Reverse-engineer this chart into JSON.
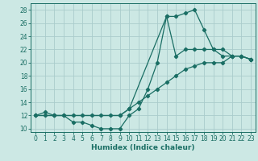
{
  "xlabel": "Humidex (Indice chaleur)",
  "background_color": "#cce8e4",
  "grid_color": "#aacccc",
  "line_color": "#1a6e64",
  "xlim": [
    -0.5,
    23.5
  ],
  "ylim": [
    9.5,
    29
  ],
  "yticks": [
    10,
    12,
    14,
    16,
    18,
    20,
    22,
    24,
    26,
    28
  ],
  "xticks": [
    0,
    1,
    2,
    3,
    4,
    5,
    6,
    7,
    8,
    9,
    10,
    11,
    12,
    13,
    14,
    15,
    16,
    17,
    18,
    19,
    20,
    21,
    22,
    23
  ],
  "series1_x": [
    0,
    1,
    2,
    3,
    4,
    5,
    6,
    7,
    8,
    9,
    10,
    11,
    12,
    13,
    14,
    15,
    16,
    17,
    18,
    19,
    20,
    21,
    22,
    23
  ],
  "series1_y": [
    12,
    12,
    12,
    12,
    12,
    12,
    12,
    12,
    12,
    12,
    13,
    14,
    15,
    16,
    17,
    18,
    19,
    19.5,
    20,
    20,
    20,
    21,
    21,
    20.5
  ],
  "series2_x": [
    0,
    1,
    2,
    3,
    4,
    5,
    6,
    7,
    8,
    9,
    10,
    11,
    12,
    13,
    14,
    15,
    16,
    17,
    18,
    19,
    20,
    21,
    22,
    23
  ],
  "series2_y": [
    12,
    12.5,
    12,
    12,
    11,
    11,
    10.5,
    10,
    10,
    10,
    12,
    13,
    16,
    20,
    27,
    27,
    27.5,
    28,
    25,
    22,
    21,
    21,
    21,
    20.5
  ],
  "series3_x": [
    0,
    2,
    9,
    10,
    14,
    15,
    16,
    17,
    18,
    19,
    20,
    21,
    22,
    23
  ],
  "series3_y": [
    12,
    12,
    12,
    13,
    27,
    21,
    22,
    22,
    22,
    22,
    22,
    21,
    21,
    20.5
  ]
}
